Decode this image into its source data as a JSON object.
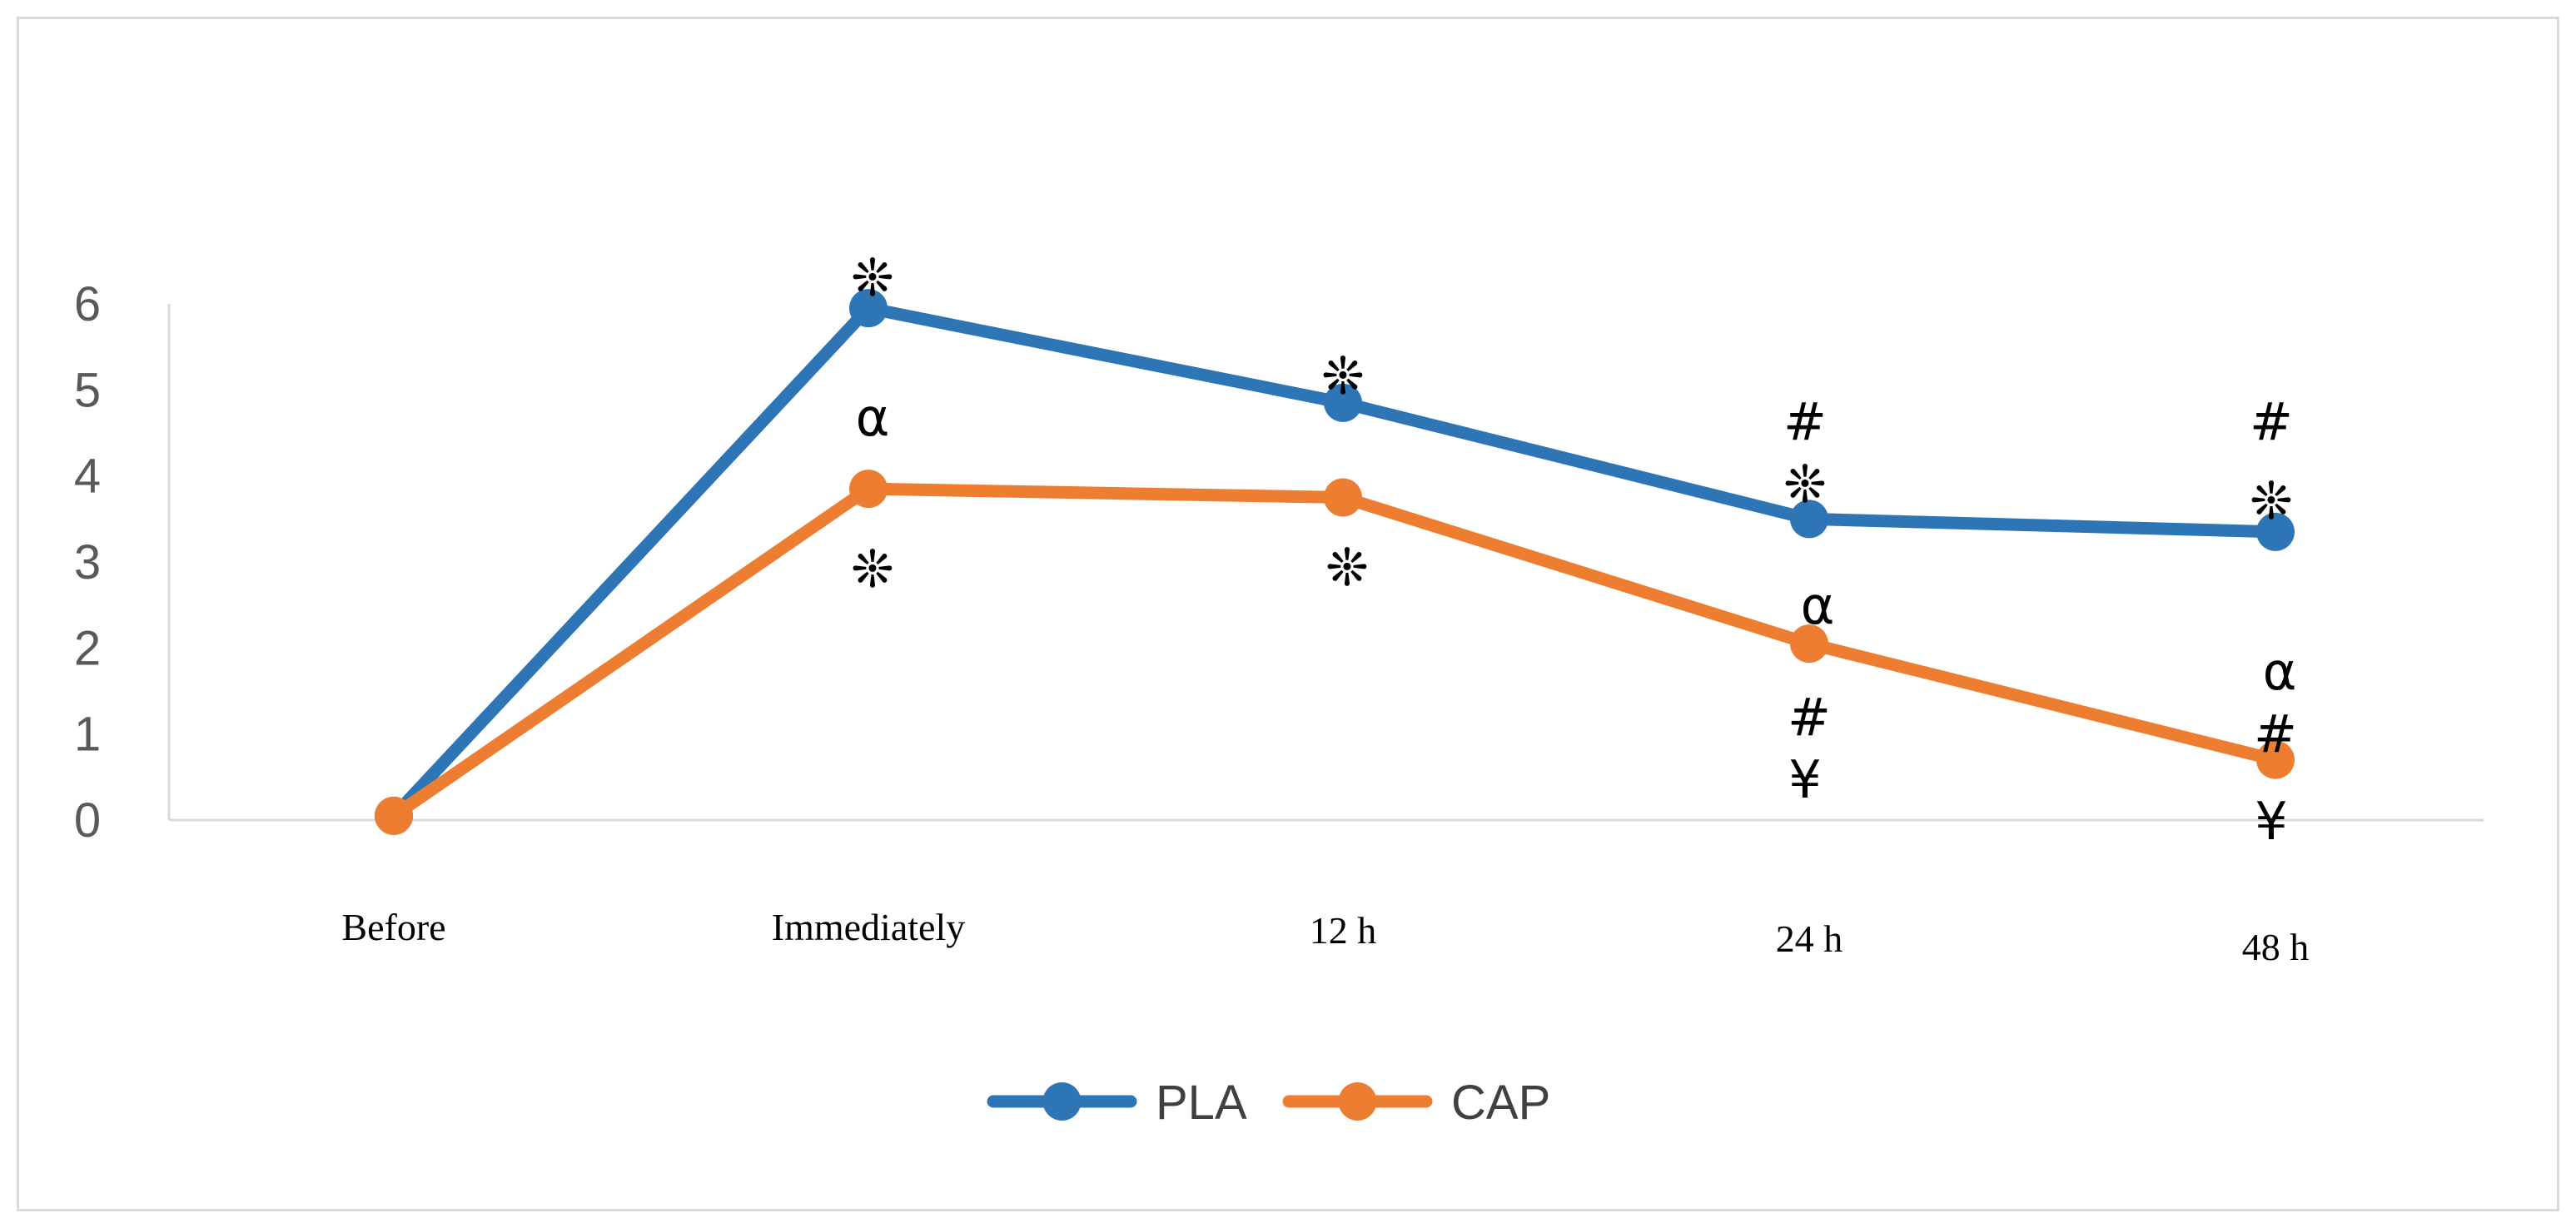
{
  "chart_data": {
    "type": "line",
    "title": "",
    "xlabel": "",
    "ylabel": "",
    "categories": [
      "Before",
      "Immediately",
      "12 h",
      "24 h",
      "48 h"
    ],
    "ylim": [
      0,
      6
    ],
    "yticks": [
      "0",
      "1",
      "2",
      "3",
      "4",
      "5",
      "6"
    ],
    "gridlines": false,
    "legend_position": "bottom-center",
    "series": [
      {
        "name": "PLA",
        "color": "#2e75b6",
        "values": [
          0.05,
          5.95,
          4.85,
          3.5,
          3.35
        ],
        "annotations": [
          [],
          [
            "❊"
          ],
          [
            "❊"
          ],
          [
            "#",
            "❊"
          ],
          [
            "#",
            "❊"
          ]
        ]
      },
      {
        "name": "CAP",
        "color": "#ed7d31",
        "values": [
          0.05,
          3.85,
          3.75,
          2.05,
          0.7
        ],
        "annotations": [
          [],
          [
            "α",
            "❊"
          ],
          [
            "❊"
          ],
          [
            "α",
            "#",
            "¥"
          ],
          [
            "α",
            "#",
            "¥"
          ]
        ]
      }
    ]
  }
}
